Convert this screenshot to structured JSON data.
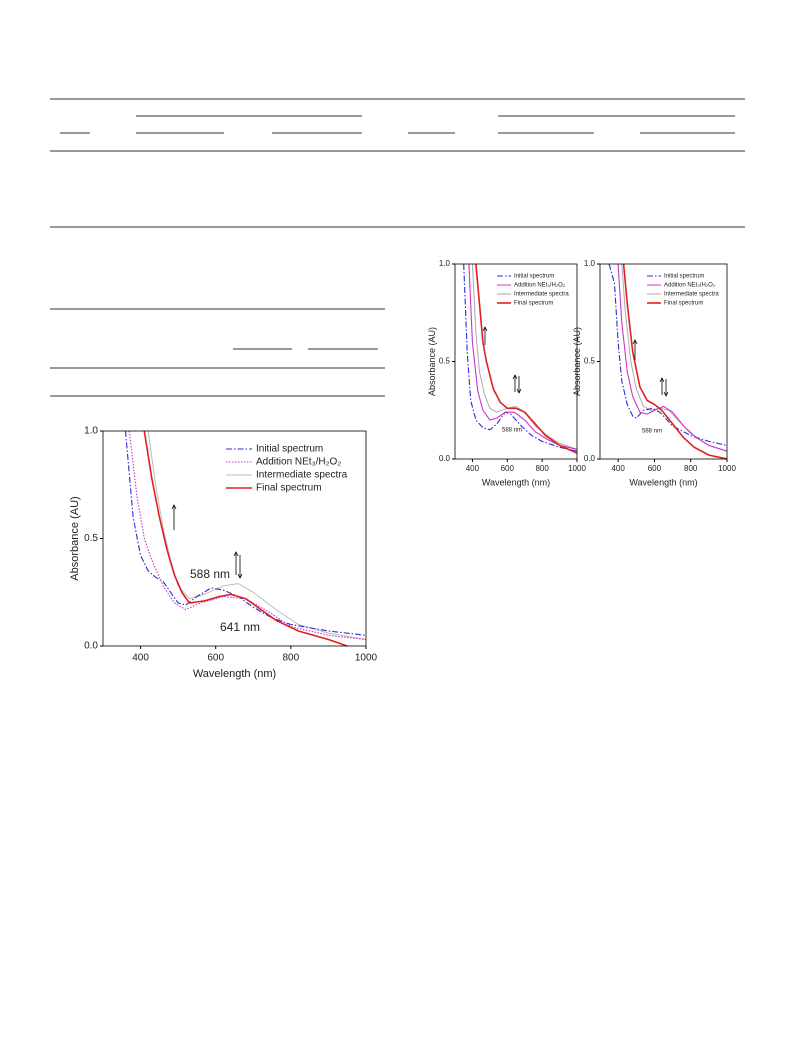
{
  "chart_data": [
    {
      "type": "line",
      "xlabel": "Wavelength (nm)",
      "ylabel": "Absorbance (AU)",
      "xlim": [
        300,
        1000
      ],
      "xticks": [
        400,
        600,
        800,
        1000
      ],
      "ylim": [
        0,
        1
      ],
      "yticks": [
        {
          "value": 0,
          "label": "0.0"
        },
        {
          "value": 0.5,
          "label": "0.5"
        },
        {
          "value": 1,
          "label": "1.0"
        }
      ],
      "legend": "upper right",
      "series": [
        {
          "name": "Initial spectrum",
          "color": "#2b2bd6",
          "style": "dashdot",
          "x": [
            360,
            380,
            400,
            420,
            440,
            460,
            480,
            500,
            520,
            550,
            588,
            620,
            660,
            700,
            750,
            800,
            900,
            1000
          ],
          "values": [
            1.0,
            0.6,
            0.42,
            0.35,
            0.32,
            0.3,
            0.25,
            0.2,
            0.19,
            0.23,
            0.27,
            0.26,
            0.23,
            0.18,
            0.13,
            0.1,
            0.07,
            0.05
          ]
        },
        {
          "name": "Addition NEt₃/H₂O₂",
          "color": "#cc33cc",
          "style": "dotted",
          "x": [
            370,
            390,
            410,
            430,
            460,
            490,
            520,
            560,
            620,
            680,
            740,
            800,
            900,
            1000
          ],
          "values": [
            1.0,
            0.7,
            0.5,
            0.4,
            0.28,
            0.2,
            0.17,
            0.2,
            0.23,
            0.22,
            0.16,
            0.09,
            0.05,
            0.03
          ]
        },
        {
          "name": "Intermediate spectra",
          "color": "#bbbbbb",
          "style": "solid",
          "x": [
            420,
            440,
            460,
            480,
            500,
            530,
            570,
            620,
            660,
            700,
            760,
            820,
            900,
            1000
          ],
          "values": [
            1.0,
            0.75,
            0.55,
            0.4,
            0.28,
            0.22,
            0.24,
            0.28,
            0.29,
            0.25,
            0.17,
            0.1,
            0.06,
            0.03
          ]
        },
        {
          "name": "Final spectrum",
          "color": "#e02020",
          "style": "solid",
          "x": [
            410,
            430,
            450,
            470,
            490,
            510,
            530,
            570,
            610,
            641,
            680,
            720,
            760,
            820,
            900,
            950
          ],
          "values": [
            1.0,
            0.78,
            0.6,
            0.45,
            0.33,
            0.25,
            0.2,
            0.21,
            0.23,
            0.24,
            0.22,
            0.17,
            0.12,
            0.07,
            0.03,
            0.0
          ]
        }
      ],
      "annotations": [
        {
          "text": "588 nm",
          "color": "#2b2bd6"
        },
        {
          "text": "641 nm",
          "color": "#e02020"
        }
      ]
    },
    {
      "type": "line",
      "xlabel": "Wavelength (nm)",
      "ylabel": "Absorbance (AU)",
      "xlim": [
        300,
        1000
      ],
      "xticks": [
        400,
        600,
        800,
        1000
      ],
      "ylim": [
        0,
        1
      ],
      "yticks": [
        {
          "value": 0,
          "label": "0.0"
        },
        {
          "value": 0.5,
          "label": "0.5"
        },
        {
          "value": 1,
          "label": "1.0"
        }
      ],
      "legend": "upper right",
      "series": [
        {
          "name": "Initial spectrum",
          "color": "#2b2bd6",
          "style": "dashdot",
          "x": [
            350,
            370,
            390,
            420,
            460,
            500,
            540,
            588,
            620,
            680,
            740,
            800,
            900,
            1000
          ],
          "values": [
            1.0,
            0.55,
            0.3,
            0.2,
            0.16,
            0.15,
            0.18,
            0.24,
            0.23,
            0.17,
            0.12,
            0.09,
            0.06,
            0.04
          ]
        },
        {
          "name": "Addition NEt₃/H₂O₂",
          "color": "#cc33cc",
          "style": "solid",
          "x": [
            380,
            400,
            430,
            460,
            500,
            540,
            588,
            640,
            700,
            760,
            830,
            900,
            1000
          ],
          "values": [
            1.0,
            0.6,
            0.35,
            0.25,
            0.2,
            0.21,
            0.24,
            0.24,
            0.2,
            0.14,
            0.1,
            0.07,
            0.05
          ]
        },
        {
          "name": "Intermediate spectra",
          "color": "#aaaaaa",
          "style": "solid",
          "x": [
            400,
            420,
            440,
            470,
            500,
            540,
            600,
            650,
            700,
            760,
            830,
            900,
            1000
          ],
          "values": [
            1.0,
            0.65,
            0.45,
            0.33,
            0.26,
            0.24,
            0.26,
            0.27,
            0.24,
            0.17,
            0.12,
            0.08,
            0.05
          ]
        },
        {
          "name": "Final spectrum",
          "color": "#e02020",
          "style": "solid",
          "x": [
            420,
            440,
            460,
            480,
            520,
            560,
            600,
            650,
            700,
            760,
            820,
            900,
            1000
          ],
          "values": [
            1.0,
            0.8,
            0.6,
            0.5,
            0.36,
            0.29,
            0.26,
            0.26,
            0.24,
            0.18,
            0.12,
            0.07,
            0.03
          ]
        }
      ],
      "annotations": [
        {
          "text": "588 nm",
          "color": "#2b2bd6"
        }
      ]
    },
    {
      "type": "line",
      "xlabel": "Wavelength (nm)",
      "ylabel": "Absorbance (AU)",
      "xlim": [
        300,
        1000
      ],
      "xticks": [
        400,
        600,
        800,
        1000
      ],
      "ylim": [
        0,
        1
      ],
      "yticks": [
        {
          "value": 0,
          "label": "0.0"
        },
        {
          "value": 0.5,
          "label": "0.5"
        },
        {
          "value": 1,
          "label": "1.0"
        }
      ],
      "legend": "upper right",
      "series": [
        {
          "name": "Initial spectrum",
          "color": "#2b2bd6",
          "style": "dashdot",
          "x": [
            350,
            380,
            400,
            420,
            450,
            480,
            500,
            540,
            588,
            630,
            700,
            800,
            900,
            1000
          ],
          "values": [
            1.0,
            0.9,
            0.6,
            0.4,
            0.28,
            0.22,
            0.21,
            0.25,
            0.26,
            0.24,
            0.17,
            0.12,
            0.09,
            0.07
          ]
        },
        {
          "name": "Addition NEt₃/H₂O₂",
          "color": "#cc33cc",
          "style": "solid",
          "x": [
            400,
            420,
            450,
            480,
            520,
            560,
            600,
            650,
            700,
            760,
            830,
            900,
            1000
          ],
          "values": [
            1.0,
            0.7,
            0.45,
            0.32,
            0.24,
            0.23,
            0.25,
            0.27,
            0.24,
            0.17,
            0.11,
            0.07,
            0.04
          ]
        },
        {
          "name": "Intermediate spectra",
          "color": "#aaaaaa",
          "style": "solid",
          "x": [
            420,
            440,
            470,
            500,
            540,
            580,
            630,
            680,
            730,
            800,
            900,
            1000
          ],
          "values": [
            1.0,
            0.75,
            0.5,
            0.36,
            0.27,
            0.25,
            0.26,
            0.25,
            0.2,
            0.13,
            0.07,
            0.04
          ]
        },
        {
          "name": "Final spectrum",
          "color": "#e02020",
          "style": "solid",
          "x": [
            430,
            450,
            480,
            520,
            560,
            600,
            640,
            700,
            760,
            820,
            900,
            1000
          ],
          "values": [
            1.0,
            0.8,
            0.55,
            0.37,
            0.3,
            0.28,
            0.25,
            0.18,
            0.11,
            0.06,
            0.02,
            0.0
          ]
        }
      ],
      "annotations": [
        {
          "text": "588 nm",
          "color": "#2b2bd6"
        }
      ]
    }
  ]
}
